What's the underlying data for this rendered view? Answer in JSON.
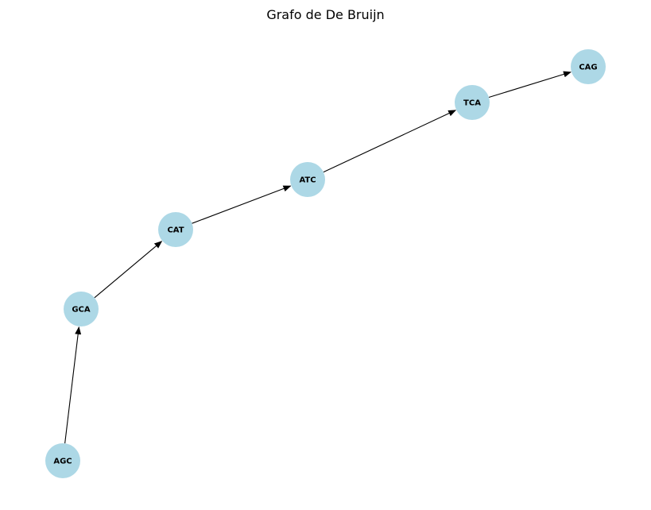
{
  "title": "Grafo de De Bruijn",
  "colors": {
    "node_fill": "#add8e6",
    "edge": "#000000",
    "label": "#000000",
    "background": "#ffffff"
  },
  "graph": {
    "nodes": [
      {
        "id": "AGC",
        "label": "AGC"
      },
      {
        "id": "GCA",
        "label": "GCA"
      },
      {
        "id": "CAT",
        "label": "CAT"
      },
      {
        "id": "ATC",
        "label": "ATC"
      },
      {
        "id": "TCA",
        "label": "TCA"
      },
      {
        "id": "CAG",
        "label": "CAG"
      }
    ],
    "edges": [
      {
        "from": "AGC",
        "to": "GCA"
      },
      {
        "from": "GCA",
        "to": "CAT"
      },
      {
        "from": "CAT",
        "to": "ATC"
      },
      {
        "from": "ATC",
        "to": "TCA"
      },
      {
        "from": "TCA",
        "to": "CAG"
      }
    ],
    "directed": true
  }
}
